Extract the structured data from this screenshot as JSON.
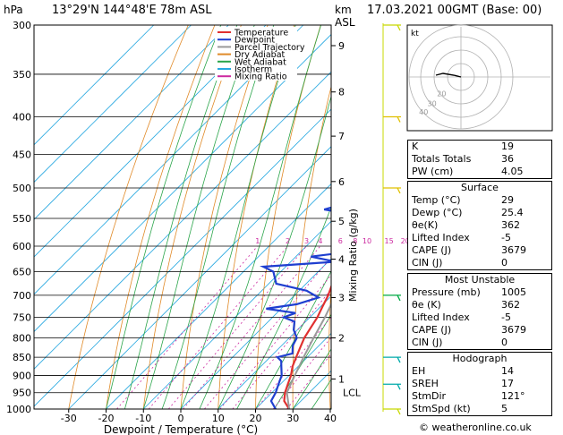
{
  "header": {
    "location": "13°29'N  144°48'E  78m  ASL",
    "pressure_unit": "hPa",
    "height_unit_km": "km",
    "height_unit_asl": "ASL",
    "datetime": "17.03.2021  00GMT  (Base: 00)"
  },
  "chart_data": {
    "type": "line",
    "title": "",
    "xlabel": "Dewpoint / Temperature (°C)",
    "ylabel": "hPa",
    "mixing_ratio_label": "Mixing Ratio (g/kg)",
    "x_ticks": [
      -30,
      -20,
      -10,
      0,
      10,
      20,
      30,
      40
    ],
    "x_range": [
      -40,
      40
    ],
    "pressure_ticks": [
      300,
      350,
      400,
      450,
      500,
      550,
      600,
      650,
      700,
      750,
      800,
      850,
      900,
      950,
      1000
    ],
    "pressure_range": [
      300,
      1000
    ],
    "height_ticks_km": [
      {
        "km": "1",
        "p": 910
      },
      {
        "km": "2",
        "p": 800
      },
      {
        "km": "3",
        "p": 705
      },
      {
        "km": "4",
        "p": 625
      },
      {
        "km": "5",
        "p": 555
      },
      {
        "km": "6",
        "p": 490
      },
      {
        "km": "7",
        "p": 425
      },
      {
        "km": "8",
        "p": 370
      },
      {
        "km": "9",
        "p": 320
      }
    ],
    "lcl": {
      "label": "LCL",
      "p": 950
    },
    "mixing_ratio_values": [
      "1",
      "2",
      "3",
      "4",
      "6",
      "8",
      "10",
      "15",
      "20",
      "25"
    ],
    "legend": [
      "Temperature",
      "Dewpoint",
      "Parcel Trajectory",
      "Dry Adiabat",
      "Wet Adiabat",
      "Isotherm",
      "Mixing Ratio"
    ],
    "legend_colors": [
      "#e03030",
      "#1f3fd0",
      "#9a9a9a",
      "#e08a28",
      "#2aa54a",
      "#28a8e0",
      "#cc2aa0"
    ],
    "series": [
      {
        "name": "Temperature",
        "color": "#e03030",
        "points": [
          {
            "p": 1000,
            "t": 29
          },
          {
            "p": 975,
            "t": 25.5
          },
          {
            "p": 950,
            "t": 23.5
          },
          {
            "p": 925,
            "t": 22
          },
          {
            "p": 900,
            "t": 20.5
          },
          {
            "p": 875,
            "t": 18.5
          },
          {
            "p": 850,
            "t": 17
          },
          {
            "p": 825,
            "t": 15.5
          },
          {
            "p": 800,
            "t": 14
          },
          {
            "p": 775,
            "t": 13
          },
          {
            "p": 750,
            "t": 12
          },
          {
            "p": 725,
            "t": 10.5
          },
          {
            "p": 700,
            "t": 9
          },
          {
            "p": 675,
            "t": 7
          },
          {
            "p": 650,
            "t": 5.5
          },
          {
            "p": 625,
            "t": 4
          },
          {
            "p": 600,
            "t": 2
          },
          {
            "p": 575,
            "t": 0
          },
          {
            "p": 550,
            "t": -2
          },
          {
            "p": 525,
            "t": -4
          },
          {
            "p": 500,
            "t": -6.5
          },
          {
            "p": 475,
            "t": -9
          },
          {
            "p": 450,
            "t": -12
          },
          {
            "p": 425,
            "t": -15
          },
          {
            "p": 400,
            "t": -18.5
          },
          {
            "p": 375,
            "t": -22
          },
          {
            "p": 360,
            "t": -25
          },
          {
            "p": 350,
            "t": -27
          },
          {
            "p": 325,
            "t": -31.5
          },
          {
            "p": 300,
            "t": -36
          }
        ]
      },
      {
        "name": "Dewpoint",
        "color": "#1f3fd0",
        "points": [
          {
            "p": 1000,
            "t": 25.4
          },
          {
            "p": 975,
            "t": 22
          },
          {
            "p": 950,
            "t": 21
          },
          {
            "p": 925,
            "t": 19.5
          },
          {
            "p": 900,
            "t": 18
          },
          {
            "p": 875,
            "t": 15.5
          },
          {
            "p": 860,
            "t": 14
          },
          {
            "p": 850,
            "t": 12
          },
          {
            "p": 840,
            "t": 15
          },
          {
            "p": 820,
            "t": 13
          },
          {
            "p": 800,
            "t": 12
          },
          {
            "p": 780,
            "t": 9
          },
          {
            "p": 760,
            "t": 7
          },
          {
            "p": 750,
            "t": 3
          },
          {
            "p": 740,
            "t": 5
          },
          {
            "p": 730,
            "t": -4
          },
          {
            "p": 720,
            "t": 3
          },
          {
            "p": 705,
            "t": 7
          },
          {
            "p": 690,
            "t": 2
          },
          {
            "p": 675,
            "t": -8
          },
          {
            "p": 650,
            "t": -12
          },
          {
            "p": 640,
            "t": -16
          },
          {
            "p": 630,
            "t": 2
          },
          {
            "p": 620,
            "t": -6
          },
          {
            "p": 610,
            "t": 4
          },
          {
            "p": 600,
            "t": 5
          },
          {
            "p": 580,
            "t": 2
          },
          {
            "p": 560,
            "t": -1
          },
          {
            "p": 545,
            "t": -4
          },
          {
            "p": 535,
            "t": -15
          },
          {
            "p": 520,
            "t": -9
          },
          {
            "p": 510,
            "t": -16
          },
          {
            "p": 500,
            "t": -4
          },
          {
            "p": 480,
            "t": -5
          },
          {
            "p": 450,
            "t": -8
          },
          {
            "p": 425,
            "t": -13
          },
          {
            "p": 400,
            "t": -17
          },
          {
            "p": 390,
            "t": -30
          },
          {
            "p": 375,
            "t": -26
          },
          {
            "p": 350,
            "t": -24
          },
          {
            "p": 340,
            "t": -28
          },
          {
            "p": 330,
            "t": -29
          },
          {
            "p": 320,
            "t": -34
          },
          {
            "p": 310,
            "t": -40
          },
          {
            "p": 300,
            "t": -45
          }
        ]
      },
      {
        "name": "Parcel Trajectory",
        "color": "#9a9a9a",
        "points": [
          {
            "p": 1000,
            "t": 29
          },
          {
            "p": 950,
            "t": 24
          },
          {
            "p": 900,
            "t": 21.5
          },
          {
            "p": 850,
            "t": 19
          },
          {
            "p": 800,
            "t": 16.5
          },
          {
            "p": 750,
            "t": 14
          },
          {
            "p": 700,
            "t": 11
          },
          {
            "p": 650,
            "t": 8
          },
          {
            "p": 600,
            "t": 4.5
          },
          {
            "p": 550,
            "t": 1
          },
          {
            "p": 500,
            "t": -3
          },
          {
            "p": 450,
            "t": -7.5
          },
          {
            "p": 400,
            "t": -13
          },
          {
            "p": 350,
            "t": -19.5
          },
          {
            "p": 300,
            "t": -27
          }
        ]
      }
    ]
  },
  "hodograph": {
    "label": "kt",
    "ring_labels": [
      "20",
      "30",
      "40"
    ]
  },
  "indices": {
    "rows": [
      {
        "label": "K",
        "value": "19"
      },
      {
        "label": "Totals Totals",
        "value": "36"
      },
      {
        "label": "PW (cm)",
        "value": "4.05"
      }
    ],
    "surface": {
      "title": "Surface",
      "rows": [
        {
          "label": "Temp (°C)",
          "value": "29"
        },
        {
          "label": "Dewp (°C)",
          "value": "25.4"
        },
        {
          "label": "θe(K)",
          "value": "362"
        },
        {
          "label": "Lifted Index",
          "value": "-5"
        },
        {
          "label": "CAPE (J)",
          "value": "3679"
        },
        {
          "label": "CIN (J)",
          "value": "0"
        }
      ]
    },
    "most_unstable": {
      "title": "Most Unstable",
      "rows": [
        {
          "label": "Pressure (mb)",
          "value": "1005"
        },
        {
          "label": "θe (K)",
          "value": "362"
        },
        {
          "label": "Lifted Index",
          "value": "-5"
        },
        {
          "label": "CAPE (J)",
          "value": "3679"
        },
        {
          "label": "CIN (J)",
          "value": "0"
        }
      ]
    },
    "hodograph_box": {
      "title": "Hodograph",
      "rows": [
        {
          "label": "EH",
          "value": "14"
        },
        {
          "label": "SREH",
          "value": "17"
        },
        {
          "label": "StmDir",
          "value": "121°"
        },
        {
          "label": "StmSpd (kt)",
          "value": "5"
        }
      ]
    }
  },
  "footer": {
    "copyright": "© weatheronline.co.uk"
  }
}
